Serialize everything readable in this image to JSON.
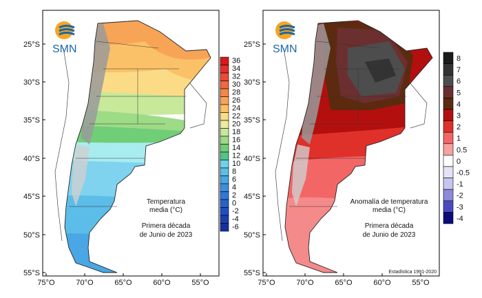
{
  "logo_text": "SMN",
  "left_map": {
    "title_line1": "Temperatura",
    "title_line2": "media (°C)",
    "subtitle_line1": "Primera década",
    "subtitle_line2": "de Junio de 2023",
    "lat_labels": [
      "25°S",
      "30°S",
      "35°S",
      "40°S",
      "45°S",
      "50°S",
      "55°S"
    ],
    "lon_labels": [
      "75°O",
      "70°O",
      "65°O",
      "60°O",
      "55°O"
    ],
    "legend": {
      "labels": [
        "36",
        "34",
        "32",
        "30",
        "28",
        "26",
        "24",
        "22",
        "20",
        "18",
        "16",
        "14",
        "12",
        "10",
        "8",
        "6",
        "4",
        "2",
        "0",
        "-2",
        "-4",
        "-6"
      ],
      "colors": [
        "#d7191c",
        "#e2302a",
        "#ec4a36",
        "#f2683f",
        "#f5864a",
        "#f8a457",
        "#fbc168",
        "#fbdb86",
        "#eaeca0",
        "#c8e89a",
        "#9ddb86",
        "#6fce76",
        "#52c48a",
        "#6fd3e8",
        "#5cbde8",
        "#4aa6e4",
        "#3b8fde",
        "#2f78d6",
        "#2662cc",
        "#1f4fc0",
        "#1a3fb0",
        "#14309e"
      ]
    }
  },
  "right_map": {
    "title_line1": "Anomalía de temperatura",
    "title_line2": "media (°C)",
    "subtitle_line1": "Primera década",
    "subtitle_line2": "de Junio de 2023",
    "footnote": "Estadística 1991-2020",
    "lat_labels": [
      "25°S",
      "30°S",
      "35°S",
      "40°S",
      "45°S",
      "50°S",
      "55°S"
    ],
    "lon_labels": [
      "75°O",
      "70°O",
      "65°O",
      "60°O",
      "55°O"
    ],
    "legend": {
      "labels": [
        "8",
        "7",
        "6",
        "5",
        "4",
        "3",
        "2",
        "1",
        "0.5",
        "0",
        "-0.5",
        "-1",
        "-2",
        "-3",
        "-4"
      ],
      "colors": [
        "#1a1a1a",
        "#333333",
        "#4d4d4d",
        "#6b2f2f",
        "#5c2a0f",
        "#b40f0f",
        "#e0302a",
        "#f26666",
        "#f7a1a1",
        "#ffffff",
        "#e3e3f7",
        "#c5c5ee",
        "#8b8bd9",
        "#4a4ac0",
        "#0b0b7a"
      ]
    }
  },
  "colors": {
    "ocean": "#ffffff",
    "andes_gray": "#9a9a9a",
    "border": "#222222"
  }
}
